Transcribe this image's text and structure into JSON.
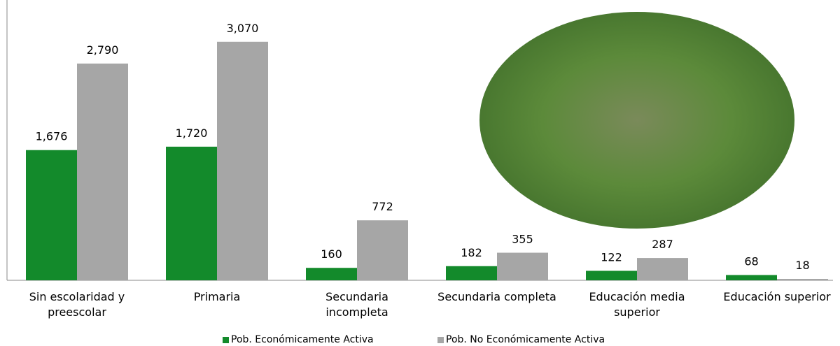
{
  "chart_data": {
    "type": "bar",
    "categories": [
      "Sin escolaridad y preescolar",
      "Primaria",
      "Secundaria incompleta",
      "Secundaria completa",
      "Educación media superior",
      "Educación superior"
    ],
    "series": [
      {
        "name": "Pob. Económicamente Activa",
        "color": "#138a2b",
        "values": [
          1676,
          1720,
          160,
          182,
          122,
          68
        ],
        "value_labels": [
          "1,676",
          "1,720",
          "160",
          "182",
          "122",
          "68"
        ]
      },
      {
        "name": "Pob. No Económicamente Activa",
        "color": "#a6a6a6",
        "values": [
          2790,
          3070,
          772,
          355,
          287,
          18
        ],
        "value_labels": [
          "2,790",
          "3,070",
          "772",
          "355",
          "287",
          "18"
        ]
      }
    ],
    "ylim": [
      0,
      3500
    ]
  }
}
